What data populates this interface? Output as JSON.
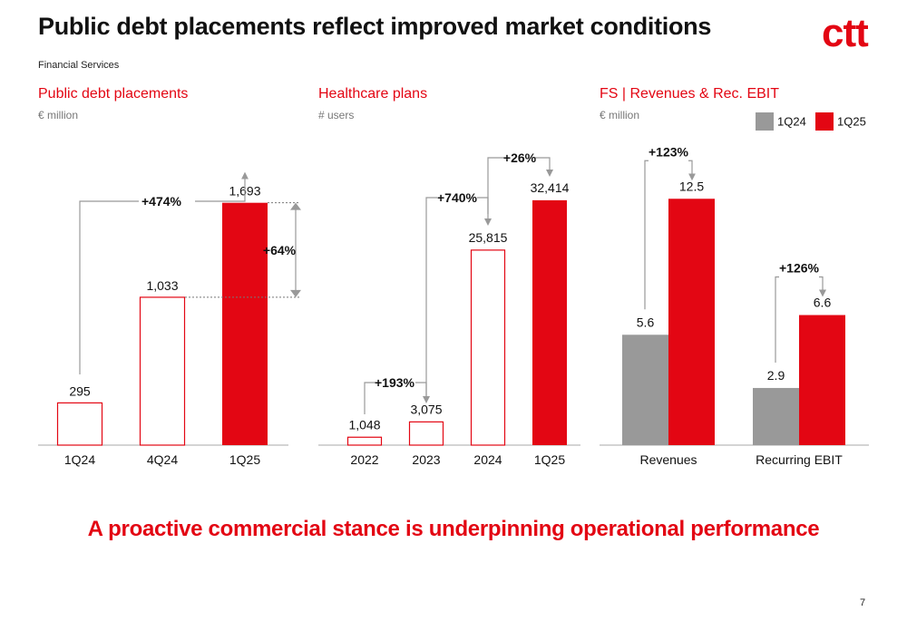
{
  "page": {
    "title": "Public debt placements reflect improved market conditions",
    "subtitle": "Financial Services",
    "logo_text": "ctt",
    "tagline": "A proactive commercial stance is underpinning operational performance",
    "page_number": "7"
  },
  "colors": {
    "red": "#e30613",
    "grey": "#999999",
    "axis": "#aaaaaa",
    "connector": "#999999"
  },
  "chart_data": [
    {
      "type": "bar",
      "title": "Public debt placements",
      "unit_label": "€ million",
      "categories": [
        "1Q24",
        "4Q24",
        "1Q25"
      ],
      "values": [
        295,
        1033,
        1693
      ],
      "value_labels": [
        "295",
        "1,033",
        "1,693"
      ],
      "bar_styles": [
        "outline",
        "outline",
        "filled"
      ],
      "ylim": [
        0,
        1900
      ],
      "annotations": [
        {
          "text": "+474%",
          "from": "1Q24",
          "to": "1Q25",
          "style": "bracket"
        },
        {
          "text": "+64%",
          "from": "4Q24",
          "to": "1Q25",
          "style": "vertical-delta"
        }
      ]
    },
    {
      "type": "bar",
      "title": "Healthcare plans",
      "unit_label": "# users",
      "categories": [
        "2022",
        "2023",
        "2024",
        "1Q25"
      ],
      "values": [
        1048,
        3075,
        25815,
        32414
      ],
      "value_labels": [
        "1,048",
        "3,075",
        "25,815",
        "32,414"
      ],
      "bar_styles": [
        "outline",
        "outline",
        "outline",
        "filled"
      ],
      "ylim": [
        0,
        36000
      ],
      "annotations": [
        {
          "text": "+193%",
          "from": "2022",
          "to": "2023"
        },
        {
          "text": "+740%",
          "from": "2023",
          "to": "2024"
        },
        {
          "text": "+26%",
          "from": "2024",
          "to": "1Q25"
        }
      ]
    },
    {
      "type": "bar",
      "title": "FS | Revenues & Rec. EBIT",
      "unit_label": "€ million",
      "categories": [
        "Revenues",
        "Recurring EBIT"
      ],
      "series": [
        {
          "name": "1Q24",
          "values": [
            5.6,
            2.9
          ],
          "value_labels": [
            "5.6",
            "2.9"
          ],
          "color": "#999999"
        },
        {
          "name": "1Q25",
          "values": [
            12.5,
            6.6
          ],
          "value_labels": [
            "12.5",
            "6.6"
          ],
          "color": "#e30613"
        }
      ],
      "ylim": [
        0,
        13.8
      ],
      "legend_position": "top-right",
      "annotations": [
        {
          "text": "+123%",
          "category": "Revenues"
        },
        {
          "text": "+126%",
          "category": "Recurring EBIT"
        }
      ]
    }
  ]
}
